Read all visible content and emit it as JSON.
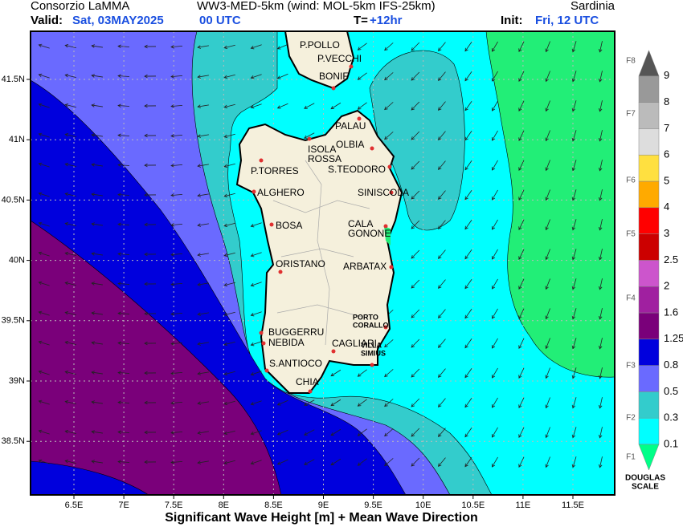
{
  "header": {
    "org": "Consorzio LaMMA",
    "model": "WW3-MED-5km (wind: MOL-5km IFS-25km)",
    "region": "Sardinia",
    "valid_label": "Valid:",
    "valid_date": "Sat, 03MAY2025",
    "valid_time": "00 UTC",
    "lead_label": "T=",
    "lead": "+12hr",
    "init_label": "Init:",
    "init": "Fri, 12 UTC"
  },
  "map": {
    "lat_labels": [
      "41.5N",
      "41N",
      "40.5N",
      "40N",
      "39.5N",
      "39N",
      "38.5N"
    ],
    "lon_labels": [
      "6.5E",
      "7E",
      "7.5E",
      "8E",
      "8.5E",
      "9E",
      "9.5E",
      "10E",
      "10.5E",
      "11E",
      "11.5E"
    ],
    "places": [
      {
        "lines": [
          "P.POLLO"
        ]
      },
      {
        "lines": [
          "P.VECCHI"
        ]
      },
      {
        "lines": [
          "BONIF"
        ]
      },
      {
        "lines": [
          "PALAU"
        ]
      },
      {
        "lines": [
          "ISOLA",
          "ROSSA"
        ]
      },
      {
        "lines": [
          "OLBIA"
        ]
      },
      {
        "lines": [
          "P.TORRES"
        ]
      },
      {
        "lines": [
          "S.TEODORO"
        ]
      },
      {
        "lines": [
          "ALGHERO"
        ]
      },
      {
        "lines": [
          "SINISCOLA"
        ]
      },
      {
        "lines": [
          "BOSA"
        ]
      },
      {
        "lines": [
          "CALA",
          "GONONE"
        ]
      },
      {
        "lines": [
          "ORISTANO"
        ]
      },
      {
        "lines": [
          "ARBATAX"
        ]
      },
      {
        "lines": [
          "PORTO",
          "CORALLO"
        ]
      },
      {
        "lines": [
          "BUGGERRU"
        ]
      },
      {
        "lines": [
          "NEBIDA"
        ]
      },
      {
        "lines": [
          "CAGLIARI"
        ]
      },
      {
        "lines": [
          "VILLA",
          "SIMIUS"
        ]
      },
      {
        "lines": [
          "S.ANTIOCO"
        ]
      },
      {
        "lines": [
          "CHIA"
        ]
      }
    ],
    "caption": "Significant Wave Height [m] + Mean Wave Direction"
  },
  "legend": {
    "levels": [
      "0.1",
      "0.3",
      "0.5",
      "0.8",
      "1.25",
      "1.6",
      "2",
      "2.5",
      "3",
      "4",
      "5",
      "6",
      "7",
      "8",
      "9"
    ],
    "colors": [
      "#00ffff",
      "#33cccc",
      "#6a6aff",
      "#0000dd",
      "#7a007a",
      "#a020a0",
      "#cc55cc",
      "#cc0000",
      "#ff0000",
      "#ffaa00",
      "#ffe040",
      "#dddddd",
      "#bbbbbb",
      "#999999"
    ],
    "above_color": "#555555",
    "below_color": "#00ff88",
    "douglas": [
      "F1",
      "F2",
      "F3",
      "F4",
      "F5",
      "F6",
      "F7",
      "F8"
    ],
    "title_lines": [
      "DOUGLAS",
      "SCALE"
    ]
  }
}
